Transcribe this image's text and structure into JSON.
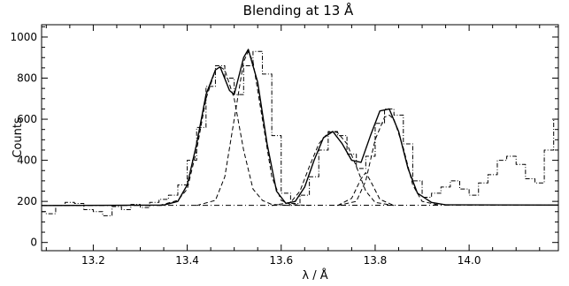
{
  "chart_data": {
    "type": "line",
    "title": "Blending at 13 Å",
    "xlabel": "λ / Å",
    "ylabel": "Counts",
    "xlim": [
      13.09,
      14.19
    ],
    "ylim": [
      -40,
      1060
    ],
    "x_ticks": [
      13.2,
      13.4,
      13.6,
      13.8,
      14.0
    ],
    "x_tick_labels": [
      "13.2",
      "13.4",
      "13.6",
      "13.8",
      "14.0"
    ],
    "y_ticks": [
      0,
      200,
      400,
      600,
      800,
      1000
    ],
    "y_tick_labels": [
      "0",
      "200",
      "400",
      "600",
      "800",
      "1000"
    ],
    "grid": false,
    "colors": {
      "ink": "#000000",
      "background": "#ffffff"
    },
    "series": [
      {
        "style": "dash-dot-step",
        "x": [
          13.09,
          13.1,
          13.12,
          13.14,
          13.16,
          13.18,
          13.2,
          13.22,
          13.24,
          13.26,
          13.28,
          13.3,
          13.32,
          13.34,
          13.36,
          13.38,
          13.4,
          13.42,
          13.44,
          13.46,
          13.48,
          13.5,
          13.52,
          13.54,
          13.56,
          13.58,
          13.6,
          13.62,
          13.64,
          13.66,
          13.68,
          13.7,
          13.72,
          13.74,
          13.76,
          13.78,
          13.8,
          13.82,
          13.84,
          13.86,
          13.88,
          13.9,
          13.92,
          13.94,
          13.96,
          13.98,
          14.0,
          14.02,
          14.04,
          14.06,
          14.08,
          14.1,
          14.12,
          14.14,
          14.16,
          14.18
        ],
        "y": [
          150,
          140,
          180,
          195,
          190,
          160,
          150,
          130,
          175,
          160,
          185,
          170,
          195,
          210,
          230,
          280,
          400,
          560,
          760,
          860,
          800,
          720,
          860,
          930,
          820,
          520,
          240,
          190,
          230,
          320,
          450,
          540,
          520,
          430,
          360,
          420,
          580,
          650,
          620,
          480,
          300,
          220,
          240,
          270,
          300,
          260,
          230,
          290,
          330,
          400,
          420,
          380,
          310,
          290,
          450,
          600
        ]
      },
      {
        "style": "solid",
        "x": [
          13.09,
          13.35,
          13.38,
          13.4,
          13.42,
          13.44,
          13.46,
          13.47,
          13.49,
          13.5,
          13.52,
          13.53,
          13.55,
          13.57,
          13.59,
          13.61,
          13.63,
          13.65,
          13.67,
          13.69,
          13.71,
          13.73,
          13.75,
          13.77,
          13.79,
          13.81,
          13.83,
          13.85,
          13.87,
          13.89,
          13.92,
          13.95,
          14.19
        ],
        "y": [
          180,
          182,
          200,
          280,
          480,
          720,
          840,
          855,
          740,
          720,
          900,
          940,
          780,
          480,
          250,
          190,
          200,
          270,
          400,
          510,
          540,
          480,
          400,
          390,
          520,
          640,
          650,
          540,
          360,
          240,
          195,
          183,
          182
        ]
      },
      {
        "style": "dashed",
        "x": [
          13.34,
          13.38,
          13.4,
          13.42,
          13.44,
          13.46,
          13.47,
          13.48,
          13.5,
          13.52,
          13.54,
          13.56,
          13.58,
          13.62
        ],
        "y": [
          180,
          205,
          260,
          450,
          700,
          840,
          855,
          840,
          700,
          450,
          260,
          205,
          185,
          180
        ]
      },
      {
        "style": "dashed",
        "x": [
          13.42,
          13.46,
          13.48,
          13.5,
          13.52,
          13.53,
          13.54,
          13.56,
          13.58,
          13.6,
          13.62,
          13.66
        ],
        "y": [
          180,
          205,
          320,
          600,
          880,
          930,
          880,
          600,
          320,
          205,
          185,
          180
        ]
      },
      {
        "style": "dashed",
        "x": [
          13.58,
          13.62,
          13.64,
          13.66,
          13.68,
          13.7,
          13.71,
          13.72,
          13.74,
          13.76,
          13.78,
          13.8,
          13.84
        ],
        "y": [
          180,
          195,
          250,
          370,
          480,
          535,
          540,
          535,
          480,
          370,
          250,
          195,
          180
        ]
      },
      {
        "style": "dashed",
        "x": [
          13.72,
          13.75,
          13.77,
          13.78,
          13.79,
          13.81,
          13.84
        ],
        "y": [
          180,
          215,
          310,
          340,
          300,
          210,
          180
        ]
      },
      {
        "style": "dashed",
        "x": [
          13.72,
          13.76,
          13.78,
          13.8,
          13.82,
          13.83,
          13.84,
          13.86,
          13.88,
          13.9,
          13.94
        ],
        "y": [
          180,
          200,
          300,
          500,
          610,
          620,
          600,
          460,
          280,
          200,
          180
        ]
      },
      {
        "style": "dash-dot",
        "x": [
          13.09,
          14.19
        ],
        "y": [
          180,
          182
        ]
      }
    ]
  }
}
